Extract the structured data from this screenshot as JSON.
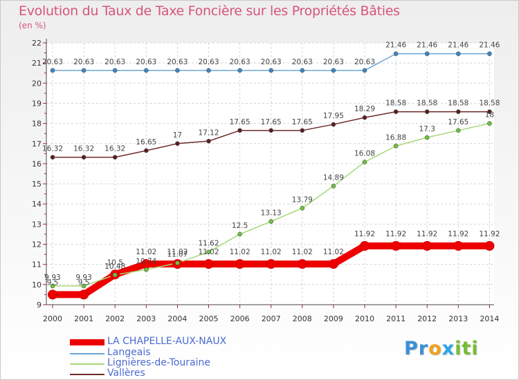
{
  "chart_data": {
    "type": "line",
    "title": "Evolution du Taux de Taxe Foncière sur les Propriétés Bâties",
    "unit_label": "(en %)",
    "xlabel": "",
    "ylabel": "",
    "ylim": [
      9,
      22
    ],
    "y_ticks": [
      9,
      10,
      11,
      12,
      13,
      14,
      15,
      16,
      17,
      18,
      19,
      20,
      21,
      22
    ],
    "grid": true,
    "x": [
      "2000",
      "2001",
      "2002",
      "2003",
      "2004",
      "2005",
      "2006",
      "2007",
      "2008",
      "2009",
      "2010",
      "2011",
      "2012",
      "2013",
      "2014"
    ],
    "series": [
      {
        "name": "LA CHAPELLE-AUX-NAUX",
        "color": "#ee0000",
        "marker_color": "#ee0000",
        "values": [
          9.5,
          9.5,
          10.5,
          11.02,
          11.02,
          11.02,
          11.02,
          11.02,
          11.02,
          11.02,
          11.92,
          11.92,
          11.92,
          11.92,
          11.92
        ],
        "labels": [
          "9.5",
          "9.5",
          "10.5",
          "11.02",
          "11.02",
          "11.02",
          "11.02",
          "11.02",
          "11.02",
          "11.02",
          "11.92",
          "11.92",
          "11.92",
          "11.92",
          "11.92"
        ]
      },
      {
        "name": "Langeais",
        "color": "#6aa5d6",
        "marker_color": "#3b86c8",
        "values": [
          20.63,
          20.63,
          20.63,
          20.63,
          20.63,
          20.63,
          20.63,
          20.63,
          20.63,
          20.63,
          20.63,
          21.46,
          21.46,
          21.46,
          21.46
        ],
        "labels": [
          "20.63",
          "20.63",
          "20.63",
          "20.63",
          "20.63",
          "20.63",
          "20.63",
          "20.63",
          "20.63",
          "20.63",
          "20.63",
          "21.46",
          "21.46",
          "21.46",
          "21.46"
        ]
      },
      {
        "name": "Lignières-de-Touraine",
        "color": "#a6d878",
        "marker_color": "#6cc43c",
        "values": [
          9.93,
          9.93,
          10.48,
          10.74,
          11.07,
          11.62,
          12.5,
          13.13,
          13.79,
          14.89,
          16.08,
          16.88,
          17.3,
          17.65,
          18
        ],
        "labels": [
          "9.93",
          "9.93",
          "10.48",
          "10.74",
          "11.07",
          "11.62",
          "12.5",
          "13.13",
          "13.79",
          "14.89",
          "16.08",
          "16.88",
          "17.3",
          "17.65",
          "18"
        ]
      },
      {
        "name": "Vallères",
        "color": "#6e2a2a",
        "marker_color": "#5a1c1c",
        "values": [
          16.32,
          16.32,
          16.32,
          16.65,
          17,
          17.12,
          17.65,
          17.65,
          17.65,
          17.95,
          18.29,
          18.58,
          18.58,
          18.58,
          18.58
        ],
        "labels": [
          "16.32",
          "16.32",
          "16.32",
          "16.65",
          "17",
          "17.12",
          "17.65",
          "17.65",
          "17.65",
          "17.95",
          "18.29",
          "18.58",
          "18.58",
          "18.58",
          "18.58"
        ]
      }
    ],
    "legend_placement": "bottom-left"
  },
  "legend": [
    {
      "label": "LA CHAPELLE-AUX-NAUX",
      "color": "#ee0000"
    },
    {
      "label": "Langeais",
      "color": "#6aa5d6"
    },
    {
      "label": "Lignières-de-Touraine",
      "color": "#a6d878"
    },
    {
      "label": "Vallères",
      "color": "#6e2a2a"
    }
  ],
  "logo": {
    "p": "Pr",
    "o": "o",
    "x": "x",
    "i": "iti"
  }
}
